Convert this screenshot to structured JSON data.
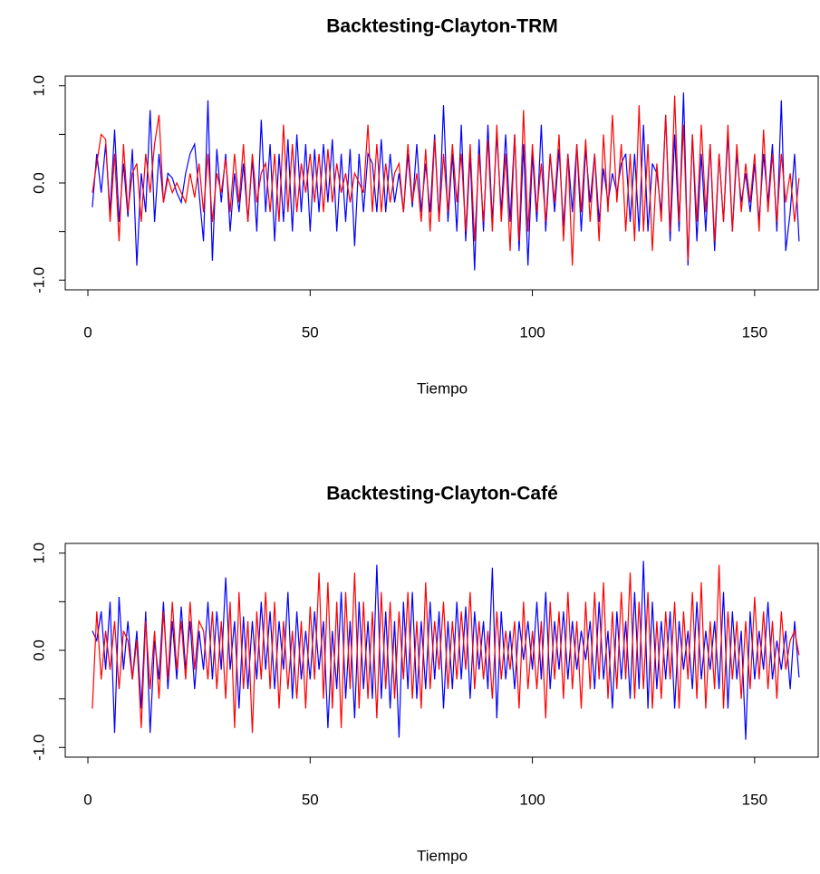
{
  "chart_data": [
    {
      "type": "line",
      "title": "Backtesting-Clayton-TRM",
      "xlabel": "Tiempo",
      "x": [
        1,
        2,
        3,
        4,
        5,
        6,
        7,
        8,
        9,
        10,
        11,
        12,
        13,
        14,
        15,
        16,
        17,
        18,
        19,
        20,
        21,
        22,
        23,
        24,
        25,
        26,
        27,
        28,
        29,
        30,
        31,
        32,
        33,
        34,
        35,
        36,
        37,
        38,
        39,
        40,
        41,
        42,
        43,
        44,
        45,
        46,
        47,
        48,
        49,
        50,
        51,
        52,
        53,
        54,
        55,
        56,
        57,
        58,
        59,
        60,
        61,
        62,
        63,
        64,
        65,
        66,
        67,
        68,
        69,
        70,
        71,
        72,
        73,
        74,
        75,
        76,
        77,
        78,
        79,
        80,
        81,
        82,
        83,
        84,
        85,
        86,
        87,
        88,
        89,
        90,
        91,
        92,
        93,
        94,
        95,
        96,
        97,
        98,
        99,
        100,
        101,
        102,
        103,
        104,
        105,
        106,
        107,
        108,
        109,
        110,
        111,
        112,
        113,
        114,
        115,
        116,
        117,
        118,
        119,
        120,
        121,
        122,
        123,
        124,
        125,
        126,
        127,
        128,
        129,
        130,
        131,
        132,
        133,
        134,
        135,
        136,
        137,
        138,
        139,
        140,
        141,
        142,
        143,
        144,
        145,
        146,
        147,
        148,
        149,
        150,
        151,
        152,
        153,
        154,
        155,
        156,
        157,
        158,
        159,
        160
      ],
      "series": [
        {
          "color": "#0000ff",
          "values": [
            -0.25,
            0.3,
            -0.1,
            0.4,
            -0.3,
            0.55,
            -0.4,
            0.2,
            -0.35,
            0.35,
            -0.85,
            0.1,
            -0.3,
            0.75,
            -0.4,
            0.3,
            -0.2,
            0.1,
            0.05,
            -0.1,
            -0.2,
            0.1,
            0.3,
            0.4,
            -0.1,
            -0.6,
            0.85,
            -0.8,
            0.35,
            -0.2,
            0.3,
            -0.5,
            0.1,
            -0.3,
            0.2,
            -0.4,
            0.25,
            -0.5,
            0.65,
            -0.3,
            0.4,
            -0.6,
            0.3,
            -0.4,
            0.45,
            -0.5,
            0.5,
            -0.3,
            0.4,
            -0.5,
            0.35,
            -0.3,
            0.4,
            -0.2,
            0.45,
            -0.5,
            0.3,
            -0.4,
            0.35,
            -0.65,
            0.3,
            -0.3,
            0.3,
            0.2,
            -0.3,
            0.45,
            -0.3,
            0.3,
            -0.2,
            0.1,
            -0.3,
            0.3,
            -0.25,
            0.4,
            -0.3,
            0.2,
            -0.3,
            0.5,
            -0.4,
            0.8,
            -0.4,
            0.3,
            -0.5,
            0.6,
            -0.6,
            0.3,
            -0.9,
            0.45,
            -0.5,
            0.6,
            -0.4,
            0.5,
            -0.3,
            0.5,
            -0.4,
            0.5,
            -0.7,
            0.4,
            -0.85,
            0.3,
            -0.4,
            0.6,
            -0.5,
            0.3,
            -0.3,
            0.35,
            -0.45,
            0.3,
            -0.3,
            0.4,
            -0.5,
            0.35,
            -0.2,
            0.3,
            -0.4,
            0.15,
            -0.2,
            0.1,
            -0.1,
            0.2,
            0.3,
            -0.4,
            0.3,
            -0.5,
            0.6,
            -0.5,
            0.2,
            0.1,
            -0.3,
            0.7,
            -0.6,
            0.5,
            -0.5,
            0.93,
            -0.85,
            0.5,
            -0.6,
            0.3,
            -0.5,
            0.4,
            -0.7,
            0.3,
            -0.4,
            0.5,
            -0.5,
            0.3,
            -0.2,
            0.1,
            -0.3,
            0.2,
            -0.4,
            0.3,
            -0.2,
            0.4,
            -0.5,
            0.85,
            -0.7,
            -0.3,
            0.3,
            -0.6
          ]
        },
        {
          "color": "#ff0000",
          "values": [
            -0.1,
            0.2,
            0.5,
            0.45,
            -0.4,
            0.3,
            -0.6,
            0.4,
            -0.3,
            0.1,
            0.2,
            -0.4,
            0.3,
            -0.1,
            0.4,
            0.7,
            -0.2,
            0.05,
            -0.1,
            0.0,
            -0.1,
            -0.2,
            0.1,
            -0.15,
            0.2,
            -0.3,
            0.3,
            -0.4,
            0.1,
            -0.1,
            0.25,
            -0.3,
            0.3,
            -0.2,
            0.4,
            -0.4,
            0.3,
            -0.2,
            0.1,
            0.2,
            -0.3,
            0.3,
            -0.4,
            0.6,
            -0.3,
            0.4,
            -0.3,
            0.2,
            -0.1,
            0.3,
            -0.2,
            0.3,
            -0.3,
            0.35,
            -0.2,
            0.2,
            -0.1,
            0.1,
            -0.2,
            0.1,
            0.0,
            -0.1,
            0.6,
            -0.3,
            0.4,
            -0.3,
            0.2,
            -0.2,
            0.1,
            0.2,
            -0.3,
            0.4,
            -0.2,
            0.1,
            -0.4,
            0.35,
            -0.5,
            0.45,
            -0.4,
            0.3,
            -0.3,
            0.4,
            -0.2,
            0.3,
            -0.5,
            0.4,
            -0.6,
            0.3,
            -0.4,
            0.45,
            -0.5,
            0.6,
            -0.4,
            0.3,
            -0.7,
            0.5,
            -0.6,
            0.75,
            -0.5,
            0.4,
            -0.3,
            0.2,
            -0.4,
            0.3,
            -0.2,
            0.5,
            -0.6,
            0.3,
            -0.85,
            0.4,
            -0.3,
            0.45,
            -0.4,
            0.3,
            -0.6,
            0.5,
            -0.3,
            0.7,
            -0.2,
            0.4,
            -0.5,
            0.3,
            -0.6,
            0.8,
            -0.5,
            0.4,
            -0.7,
            0.2,
            -0.4,
            0.7,
            -0.5,
            0.9,
            -0.4,
            0.6,
            -0.8,
            0.5,
            -0.4,
            0.6,
            -0.3,
            0.4,
            -0.6,
            0.3,
            -0.4,
            0.6,
            -0.5,
            0.4,
            -0.3,
            0.2,
            -0.2,
            0.3,
            -0.5,
            0.55,
            -0.3,
            0.3,
            -0.4,
            0.3,
            -0.2,
            0.1,
            -0.4,
            0.05
          ]
        }
      ],
      "xlim": [
        -5.1,
        164.3
      ],
      "ylim": [
        -1.1,
        1.1
      ],
      "xticks": [
        0,
        50,
        100,
        150
      ],
      "yticks": [
        {
          "value": -1,
          "label": "-1.0"
        },
        {
          "value": -0.5,
          "label": null
        },
        {
          "value": 0,
          "label": "0.0"
        },
        {
          "value": 0.5,
          "label": null
        },
        {
          "value": 1,
          "label": "1.0"
        }
      ]
    },
    {
      "type": "line",
      "title": "Backtesting-Clayton-Café",
      "xlabel": "Tiempo",
      "x": [
        1,
        2,
        3,
        4,
        5,
        6,
        7,
        8,
        9,
        10,
        11,
        12,
        13,
        14,
        15,
        16,
        17,
        18,
        19,
        20,
        21,
        22,
        23,
        24,
        25,
        26,
        27,
        28,
        29,
        30,
        31,
        32,
        33,
        34,
        35,
        36,
        37,
        38,
        39,
        40,
        41,
        42,
        43,
        44,
        45,
        46,
        47,
        48,
        49,
        50,
        51,
        52,
        53,
        54,
        55,
        56,
        57,
        58,
        59,
        60,
        61,
        62,
        63,
        64,
        65,
        66,
        67,
        68,
        69,
        70,
        71,
        72,
        73,
        74,
        75,
        76,
        77,
        78,
        79,
        80,
        81,
        82,
        83,
        84,
        85,
        86,
        87,
        88,
        89,
        90,
        91,
        92,
        93,
        94,
        95,
        96,
        97,
        98,
        99,
        100,
        101,
        102,
        103,
        104,
        105,
        106,
        107,
        108,
        109,
        110,
        111,
        112,
        113,
        114,
        115,
        116,
        117,
        118,
        119,
        120,
        121,
        122,
        123,
        124,
        125,
        126,
        127,
        128,
        129,
        130,
        131,
        132,
        133,
        134,
        135,
        136,
        137,
        138,
        139,
        140,
        141,
        142,
        143,
        144,
        145,
        146,
        147,
        148,
        149,
        150,
        151,
        152,
        153,
        154,
        155,
        156,
        157,
        158,
        159,
        160
      ],
      "series": [
        {
          "color": "#0000ff",
          "values": [
            0.2,
            0.1,
            0.4,
            -0.2,
            0.5,
            -0.85,
            0.55,
            -0.2,
            0.3,
            -0.3,
            0.2,
            -0.6,
            0.4,
            -0.85,
            0.1,
            -0.3,
            0.5,
            -0.4,
            0.3,
            -0.3,
            0.45,
            -0.2,
            0.3,
            -0.4,
            0.2,
            -0.2,
            0.5,
            -0.3,
            0.4,
            -0.2,
            0.75,
            -0.2,
            0.3,
            -0.6,
            0.35,
            -0.4,
            0.3,
            -0.3,
            0.5,
            -0.2,
            0.4,
            -0.4,
            0.3,
            -0.2,
            0.6,
            -0.5,
            0.4,
            -0.3,
            0.2,
            -0.3,
            0.4,
            -0.2,
            0.3,
            -0.8,
            0.2,
            -0.4,
            0.6,
            -0.5,
            0.3,
            -0.7,
            0.5,
            -0.4,
            0.3,
            -0.5,
            0.88,
            -0.5,
            0.4,
            -0.6,
            0.3,
            -0.9,
            0.5,
            -0.4,
            0.6,
            -0.5,
            0.3,
            -0.4,
            0.5,
            -0.3,
            0.4,
            -0.6,
            0.3,
            -0.4,
            0.5,
            -0.3,
            0.45,
            -0.5,
            0.4,
            -0.2,
            0.3,
            -0.4,
            0.85,
            -0.7,
            0.4,
            -0.3,
            0.2,
            -0.4,
            0.3,
            -0.1,
            0.3,
            -0.2,
            0.5,
            -0.3,
            0.6,
            -0.4,
            0.3,
            -0.2,
            0.4,
            -0.3,
            0.3,
            -0.2,
            0.2,
            -0.1,
            0.3,
            -0.4,
            0.5,
            -0.3,
            0.2,
            -0.6,
            0.4,
            -0.3,
            0.3,
            -0.5,
            0.6,
            -0.4,
            0.92,
            -0.6,
            0.5,
            -0.4,
            0.3,
            -0.3,
            0.4,
            -0.6,
            0.3,
            -0.2,
            0.2,
            -0.4,
            0.5,
            -0.3,
            0.2,
            -0.2,
            0.3,
            -0.4,
            0.6,
            -0.6,
            0.4,
            -0.3,
            0.2,
            -0.92,
            0.4,
            -0.3,
            0.2,
            -0.2,
            0.5,
            -0.3,
            0.1,
            -0.2,
            0.2,
            -0.4,
            0.3,
            -0.28
          ]
        },
        {
          "color": "#ff0000",
          "values": [
            -0.6,
            0.4,
            -0.3,
            0.2,
            -0.2,
            0.3,
            -0.4,
            0.2,
            0.1,
            -0.3,
            0.1,
            -0.8,
            0.3,
            -0.4,
            0.2,
            -0.5,
            0.4,
            -0.3,
            0.5,
            -0.2,
            0.3,
            -0.3,
            0.5,
            -0.2,
            0.3,
            0.2,
            -0.3,
            0.4,
            -0.4,
            0.3,
            -0.5,
            0.5,
            -0.8,
            0.6,
            -0.4,
            0.3,
            -0.85,
            0.4,
            -0.3,
            0.6,
            -0.4,
            0.5,
            -0.6,
            0.3,
            -0.4,
            0.2,
            -0.5,
            0.3,
            -0.6,
            0.45,
            -0.3,
            0.8,
            -0.5,
            0.7,
            -0.6,
            0.5,
            -0.8,
            0.6,
            -0.4,
            0.8,
            -0.6,
            0.5,
            -0.5,
            0.4,
            -0.7,
            0.6,
            -0.4,
            0.5,
            -0.5,
            0.4,
            -0.3,
            0.6,
            -0.5,
            0.3,
            -0.6,
            0.7,
            -0.4,
            0.3,
            -0.2,
            0.5,
            -0.4,
            0.3,
            -0.3,
            0.4,
            -0.2,
            0.6,
            -0.4,
            0.3,
            -0.3,
            0.2,
            -0.5,
            0.4,
            -0.3,
            0.2,
            -0.2,
            0.3,
            -0.6,
            0.5,
            -0.4,
            0.2,
            -0.4,
            0.3,
            -0.7,
            0.5,
            -0.3,
            0.4,
            -0.5,
            0.6,
            -0.4,
            0.3,
            -0.6,
            0.5,
            -0.4,
            0.6,
            -0.3,
            0.7,
            -0.5,
            0.4,
            -0.4,
            0.6,
            -0.3,
            0.8,
            -0.5,
            0.5,
            -0.4,
            0.6,
            -0.6,
            0.3,
            -0.5,
            0.4,
            -0.3,
            0.5,
            -0.6,
            0.4,
            -0.3,
            0.6,
            -0.5,
            0.7,
            -0.6,
            0.3,
            -0.4,
            0.88,
            -0.6,
            0.4,
            -0.3,
            0.3,
            -0.5,
            0.3,
            -0.4,
            0.55,
            -0.3,
            0.4,
            -0.4,
            0.3,
            -0.5,
            0.4,
            -0.2,
            0.1,
            0.2,
            -0.05
          ]
        }
      ],
      "xlim": [
        -5.1,
        164.3
      ],
      "ylim": [
        -1.1,
        1.1
      ],
      "xticks": [
        0,
        50,
        100,
        150
      ],
      "yticks": [
        {
          "value": -1,
          "label": "-1.0"
        },
        {
          "value": -0.5,
          "label": null
        },
        {
          "value": 0,
          "label": "0.0"
        },
        {
          "value": 0.5,
          "label": null
        },
        {
          "value": 1,
          "label": "1.0"
        }
      ]
    }
  ]
}
